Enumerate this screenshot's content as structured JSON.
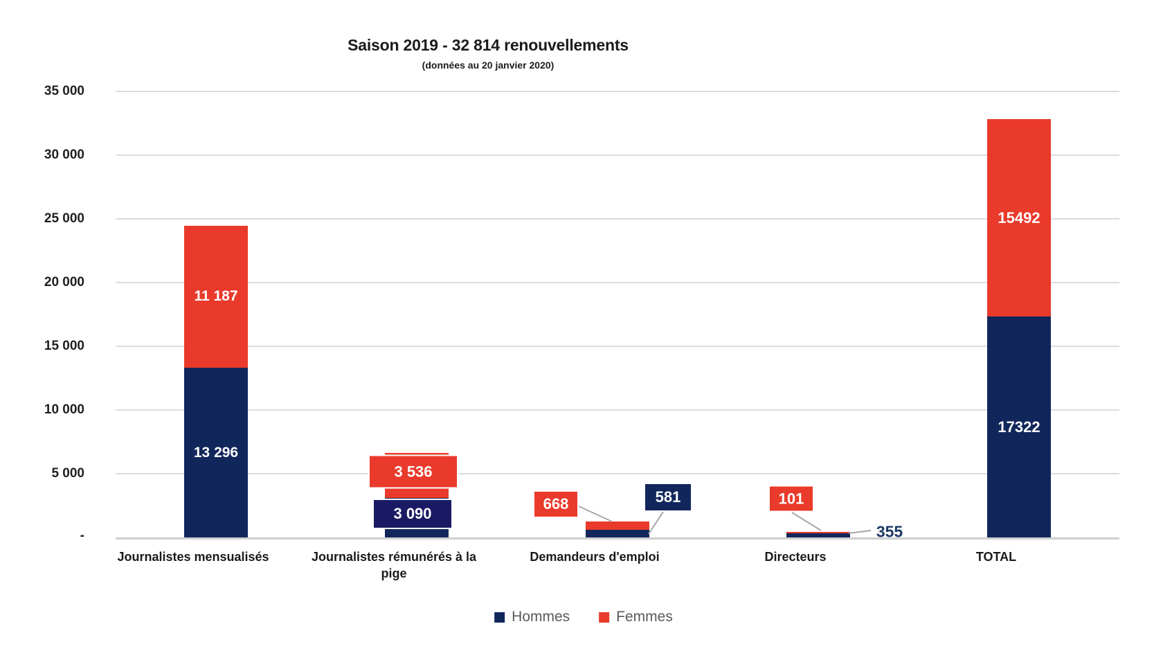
{
  "title": {
    "text": "Saison 2019 - 32 814 renouvellements",
    "subtitle": "(données au 20 janvier 2020)"
  },
  "legend": {
    "items": [
      {
        "label": "Hommes",
        "color": "#11275B"
      },
      {
        "label": "Femmes",
        "color": "#E93A2B"
      }
    ]
  },
  "colors": {
    "hommes": "#11275B",
    "femmes": "#E93A2B",
    "hommes_callout": "#1A1A64",
    "grid": "#DCDCDC",
    "axis_line": "#CFCFCF",
    "leader_line": "#A6A6A6",
    "legend_text": "#595959",
    "outside_label_text": "#1F3864"
  },
  "chart_data": {
    "type": "bar",
    "stacked": true,
    "title": "Saison 2019 - 32 814 renouvellements",
    "subtitle": "(données au 20 janvier 2020)",
    "categories": [
      "Journalistes mensualisés",
      "Journalistes rémunérés à la pige",
      "Demandeurs d'emploi",
      "Directeurs",
      "TOTAL"
    ],
    "series": [
      {
        "name": "Hommes",
        "color": "#11275B",
        "values": [
          13296,
          3090,
          581,
          355,
          17322
        ]
      },
      {
        "name": "Femmes",
        "color": "#E93A2B",
        "values": [
          11187,
          3536,
          668,
          101,
          15492
        ]
      }
    ],
    "value_label_text": {
      "hommes": [
        "13 296",
        "3 090",
        "581",
        "355",
        "17322"
      ],
      "femmes": [
        "11 187",
        "3 536",
        "668",
        "101",
        "15492"
      ]
    },
    "ylim": [
      0,
      35000
    ],
    "ytick_step": 5000,
    "ytick_labels": [
      "35 000",
      "30 000",
      "25 000",
      "20 000",
      "15 000",
      "10 000",
      "5 000",
      "-"
    ],
    "grid": true,
    "legend_position": "bottom"
  }
}
